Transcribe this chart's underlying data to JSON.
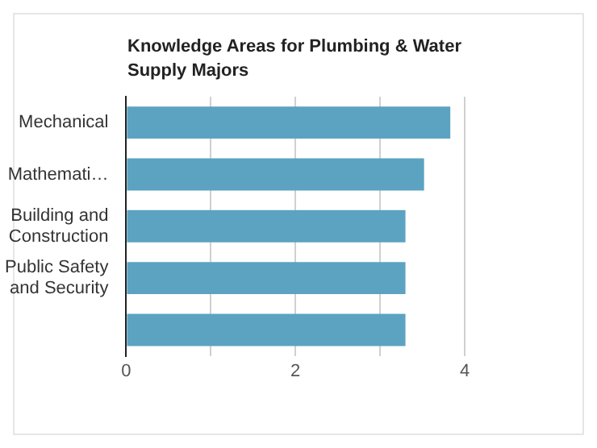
{
  "chart_data": {
    "type": "bar",
    "orientation": "horizontal",
    "title": "Knowledge Areas for Plumbing & Water Supply Majors",
    "categories": [
      "Mechanical",
      "Mathemati…",
      "Building and Construction",
      "Public Safety and Security",
      null
    ],
    "values": [
      3.83,
      3.52,
      3.3,
      3.3,
      3.3
    ],
    "color": "#5ba3c1",
    "xlim": [
      0,
      4
    ],
    "xticks": [
      0,
      {
        "value": 1,
        "label": null
      },
      2,
      {
        "value": 3,
        "label": null
      },
      4
    ],
    "grid": "x",
    "legend": false
  }
}
